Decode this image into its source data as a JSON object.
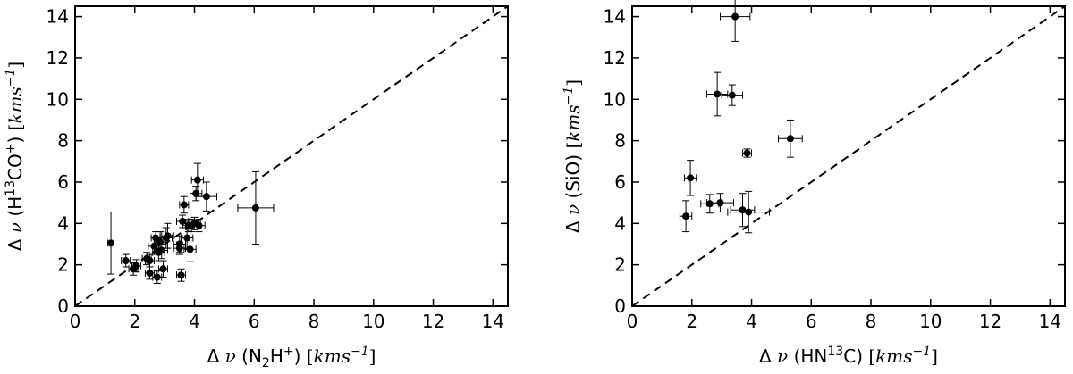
{
  "chart_data": [
    {
      "type": "scatter",
      "title": "",
      "xlabel": {
        "prefix": "Δ ",
        "nu": "ν",
        "open": " (N",
        "sub": "2",
        "mid": "H",
        "sup": "+",
        "close": ") ",
        "unit_open": "[",
        "unit": "kms",
        "unit_sup": "−1",
        "unit_close": "]"
      },
      "ylabel": {
        "prefix": "Δ ",
        "nu": "ν",
        "open": " (H",
        "sup1": "13",
        "mid": "CO",
        "sup2": "+",
        "close": ") ",
        "unit_open": "[",
        "unit": "kms",
        "unit_sup": "−1",
        "unit_close": "]"
      },
      "xlim": [
        0,
        14.5
      ],
      "ylim": [
        0,
        14.5
      ],
      "xticks": [
        "0",
        "2",
        "4",
        "6",
        "8",
        "10",
        "12",
        "14"
      ],
      "yticks": [
        "0",
        "2",
        "4",
        "6",
        "8",
        "10",
        "12",
        "14"
      ],
      "grid": false,
      "reference_line": "y = x (dashed)",
      "points": [
        {
          "x": 1.2,
          "y": 3.05,
          "xerr": 0.1,
          "yerr": 1.5
        },
        {
          "x": 1.7,
          "y": 2.2,
          "xerr": 0.15,
          "yerr": 0.3
        },
        {
          "x": 1.95,
          "y": 1.8,
          "xerr": 0.15,
          "yerr": 0.3
        },
        {
          "x": 2.05,
          "y": 1.95,
          "xerr": 0.15,
          "yerr": 0.3
        },
        {
          "x": 2.4,
          "y": 2.3,
          "xerr": 0.15,
          "yerr": 0.3
        },
        {
          "x": 2.5,
          "y": 1.6,
          "xerr": 0.15,
          "yerr": 0.3
        },
        {
          "x": 2.5,
          "y": 2.2,
          "xerr": 0.15,
          "yerr": 0.3
        },
        {
          "x": 2.65,
          "y": 2.9,
          "xerr": 0.2,
          "yerr": 0.4
        },
        {
          "x": 2.7,
          "y": 3.3,
          "xerr": 0.15,
          "yerr": 0.3
        },
        {
          "x": 2.75,
          "y": 1.4,
          "xerr": 0.15,
          "yerr": 0.3
        },
        {
          "x": 2.8,
          "y": 2.6,
          "xerr": 0.2,
          "yerr": 0.4
        },
        {
          "x": 2.85,
          "y": 3.1,
          "xerr": 0.2,
          "yerr": 0.5
        },
        {
          "x": 2.9,
          "y": 2.7,
          "xerr": 0.2,
          "yerr": 0.4
        },
        {
          "x": 2.95,
          "y": 1.8,
          "xerr": 0.15,
          "yerr": 0.4
        },
        {
          "x": 3.05,
          "y": 3.3,
          "xerr": 0.2,
          "yerr": 0.5
        },
        {
          "x": 3.1,
          "y": 3.4,
          "xerr": 0.2,
          "yerr": 0.6
        },
        {
          "x": 3.5,
          "y": 3.0,
          "xerr": 0.2,
          "yerr": 0.4
        },
        {
          "x": 3.5,
          "y": 2.8,
          "xerr": 0.2,
          "yerr": 0.3
        },
        {
          "x": 3.55,
          "y": 1.5,
          "xerr": 0.15,
          "yerr": 0.3
        },
        {
          "x": 3.6,
          "y": 4.1,
          "xerr": 0.2,
          "yerr": 0.3
        },
        {
          "x": 3.65,
          "y": 4.9,
          "xerr": 0.15,
          "yerr": 0.4
        },
        {
          "x": 3.75,
          "y": 3.3,
          "xerr": 0.2,
          "yerr": 0.5
        },
        {
          "x": 3.8,
          "y": 3.9,
          "xerr": 0.2,
          "yerr": 0.3
        },
        {
          "x": 3.85,
          "y": 2.75,
          "xerr": 0.2,
          "yerr": 0.6
        },
        {
          "x": 3.9,
          "y": 3.9,
          "xerr": 0.2,
          "yerr": 0.3
        },
        {
          "x": 4.0,
          "y": 4.0,
          "xerr": 0.2,
          "yerr": 0.3
        },
        {
          "x": 4.05,
          "y": 5.45,
          "xerr": 0.2,
          "yerr": 0.35
        },
        {
          "x": 4.1,
          "y": 6.1,
          "xerr": 0.2,
          "yerr": 0.8
        },
        {
          "x": 4.15,
          "y": 3.9,
          "xerr": 0.2,
          "yerr": 0.3
        },
        {
          "x": 4.4,
          "y": 5.3,
          "xerr": 0.35,
          "yerr": 0.7
        },
        {
          "x": 6.05,
          "y": 4.75,
          "xerr": 0.6,
          "yerr": 1.75
        }
      ]
    },
    {
      "type": "scatter",
      "title": "",
      "xlabel": {
        "prefix": "Δ ",
        "nu": "ν",
        "open": " (HN",
        "sup": "13",
        "mid": "C",
        "close": ") ",
        "unit_open": "[",
        "unit": "kms",
        "unit_sup": "−1",
        "unit_close": "]"
      },
      "ylabel": {
        "prefix": "Δ ",
        "nu": "ν",
        "open": " (SiO) ",
        "unit_open": "[",
        "unit": "kms",
        "unit_sup": "−1",
        "unit_close": "]"
      },
      "xlim": [
        0,
        14.5
      ],
      "ylim": [
        0,
        14.5
      ],
      "xticks": [
        "0",
        "2",
        "4",
        "6",
        "8",
        "10",
        "12",
        "14"
      ],
      "yticks": [
        "0",
        "2",
        "4",
        "6",
        "8",
        "10",
        "12",
        "14"
      ],
      "grid": false,
      "reference_line": "y = x (dashed)",
      "points": [
        {
          "x": 1.8,
          "y": 4.35,
          "xerr": 0.2,
          "yerr": 0.75
        },
        {
          "x": 1.95,
          "y": 6.2,
          "xerr": 0.2,
          "yerr": 0.85
        },
        {
          "x": 2.6,
          "y": 4.95,
          "xerr": 0.3,
          "yerr": 0.45
        },
        {
          "x": 2.85,
          "y": 10.25,
          "xerr": 0.35,
          "yerr": 1.05
        },
        {
          "x": 2.95,
          "y": 5.0,
          "xerr": 0.45,
          "yerr": 0.45
        },
        {
          "x": 3.35,
          "y": 10.2,
          "xerr": 0.35,
          "yerr": 0.5
        },
        {
          "x": 3.45,
          "y": 14.0,
          "xerr": 0.5,
          "yerr": 1.2
        },
        {
          "x": 3.7,
          "y": 4.65,
          "xerr": 0.4,
          "yerr": 0.8
        },
        {
          "x": 3.85,
          "y": 7.4,
          "xerr": 0.15,
          "yerr": 0.2
        },
        {
          "x": 3.9,
          "y": 4.55,
          "xerr": 0.7,
          "yerr": 1.0
        },
        {
          "x": 5.3,
          "y": 8.1,
          "xerr": 0.4,
          "yerr": 0.9
        }
      ]
    }
  ]
}
